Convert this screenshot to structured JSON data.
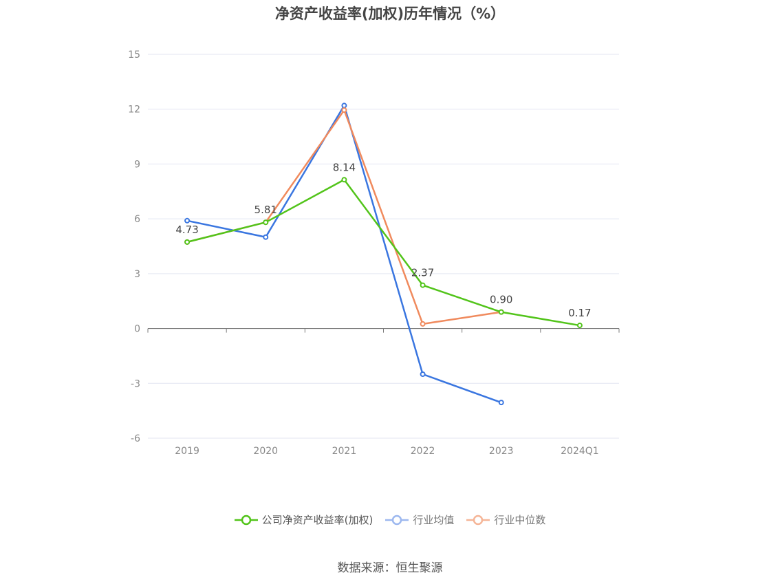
{
  "chart_data": {
    "type": "line",
    "title": "净资产收益率(加权)历年情况（%）",
    "categories": [
      "2019",
      "2020",
      "2021",
      "2022",
      "2023",
      "2024Q1"
    ],
    "ylim": [
      -6,
      15
    ],
    "yticks": [
      -6,
      -3,
      0,
      3,
      6,
      9,
      12,
      15
    ],
    "grid": true,
    "legend_position": "bottom",
    "series": [
      {
        "name": "公司净资产收益率(加权)",
        "color": "#52c41a",
        "values": [
          4.73,
          5.81,
          8.14,
          2.37,
          0.9,
          0.17
        ],
        "labels": [
          "4.73",
          "5.81",
          "8.14",
          "2.37",
          "0.90",
          "0.17"
        ]
      },
      {
        "name": "行业均值",
        "color": "#3a76e0",
        "values": [
          5.9,
          5.0,
          12.2,
          -2.5,
          -4.05,
          null
        ]
      },
      {
        "name": "行业中位数",
        "color": "#f08a5d",
        "values": [
          4.73,
          5.81,
          11.95,
          0.25,
          0.9,
          null
        ]
      }
    ]
  },
  "source": "数据来源：恒生聚源"
}
